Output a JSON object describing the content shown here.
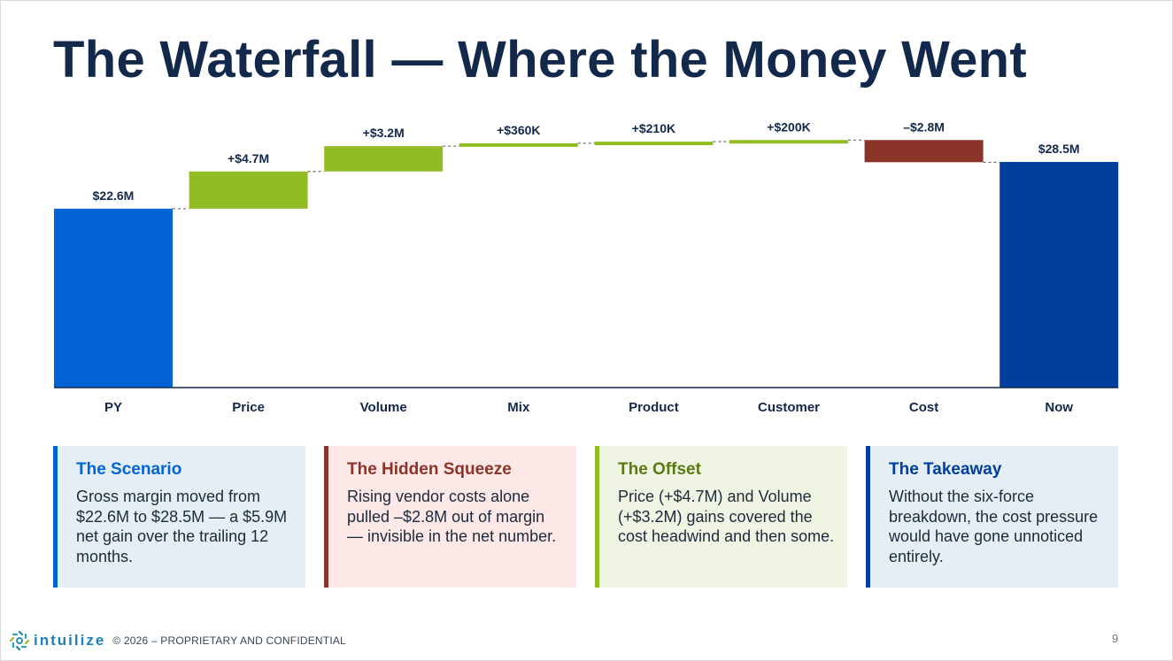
{
  "title": "The Waterfall — Where the Money Went",
  "chart_data": {
    "type": "bar",
    "subtype": "waterfall",
    "categories": [
      "PY",
      "Price",
      "Volume",
      "Mix",
      "Product",
      "Customer",
      "Cost",
      "Now"
    ],
    "values": [
      22.6,
      4.7,
      3.2,
      0.36,
      0.21,
      0.2,
      -2.8,
      28.5
    ],
    "kinds": [
      "total",
      "delta",
      "delta",
      "delta",
      "delta",
      "delta",
      "delta",
      "total"
    ],
    "data_labels": [
      "$22.6M",
      "+$4.7M",
      "+$3.2M",
      "+$360K",
      "+$210K",
      "+$200K",
      "–$2.8M",
      "$28.5M"
    ],
    "ylim": [
      0,
      31.3
    ],
    "grid": false,
    "colors": {
      "start_total": "#0364d8",
      "end_total": "#003f9e",
      "increase": "#92bc24",
      "decrease": "#8b3429",
      "connector": "#555555",
      "axis": "#13294b"
    }
  },
  "cards": [
    {
      "heading": "The Scenario",
      "body": "Gross margin moved from $22.6M to $28.5M — a $5.9M net gain over the trailing 12 months.",
      "accent": "#0364d8",
      "heading_color": "#0364d8",
      "background": "#e4eef4"
    },
    {
      "heading": "The Hidden Squeeze",
      "body": "Rising vendor costs alone pulled –$2.8M out of margin — invisible in the net number.",
      "accent": "#8b3429",
      "heading_color": "#8b3429",
      "background": "#fce8e6"
    },
    {
      "heading": "The Offset",
      "body": "Price (+$4.7M) and Volume (+$3.2M) gains covered the cost headwind and then some.",
      "accent": "#92bc24",
      "heading_color": "#5b7a13",
      "background": "#f0f5e3"
    },
    {
      "heading": "The Takeaway",
      "body": "Without the six-force breakdown, the cost pressure would have gone unnoticed entirely.",
      "accent": "#003f9e",
      "heading_color": "#003f9e",
      "background": "#e4eef4"
    }
  ],
  "footer": {
    "logo_icon": "intuilize-logo-icon",
    "logo_text": "intuilize",
    "copyright": "© 2026 – PROPRIETARY AND CONFIDENTIAL",
    "page_number": "9"
  }
}
